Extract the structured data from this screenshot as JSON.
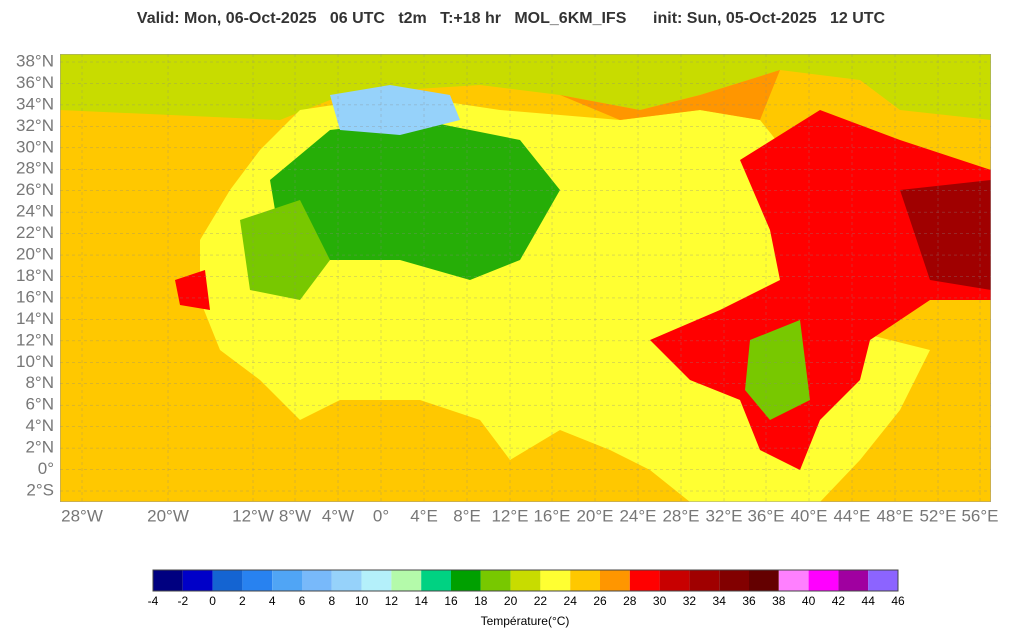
{
  "header": {
    "title": "Valid: Mon, 06-Oct-2025   06 UTC   t2m   T:+18 hr   MOL_6KM_IFS      init: Sun, 05-Oct-2025   12 UTC"
  },
  "map": {
    "lat_labels": [
      "38°N",
      "36°N",
      "34°N",
      "32°N",
      "30°N",
      "28°N",
      "26°N",
      "24°N",
      "22°N",
      "20°N",
      "18°N",
      "16°N",
      "14°N",
      "12°N",
      "10°N",
      "8°N",
      "6°N",
      "4°N",
      "2°N",
      "0°",
      "2°S"
    ],
    "lon_labels": [
      "28°W",
      "20°W",
      "12°W",
      "8°W",
      "4°W",
      "0°",
      "4°E",
      "8°E",
      "12°E",
      "16°E",
      "20°E",
      "24°E",
      "28°E",
      "32°E",
      "36°E",
      "40°E",
      "44°E",
      "48°E",
      "52°E",
      "56°E"
    ]
  },
  "colorbar": {
    "colors": [
      "#000080",
      "#0000c8",
      "#1464d2",
      "#2882f0",
      "#50a5f5",
      "#78b9fa",
      "#96d2fa",
      "#b4f0fa",
      "#b4faaa",
      "#00d282",
      "#00a000",
      "#78c800",
      "#c8dc00",
      "#ffff32",
      "#ffc800",
      "#ff9600",
      "#ff0000",
      "#c80000",
      "#a00000",
      "#820000",
      "#640000",
      "#ff80ff",
      "#ff00ff",
      "#a000a0",
      "#8c64ff"
    ],
    "ticks": [
      "-4",
      "-2",
      "0",
      "2",
      "4",
      "6",
      "8",
      "10",
      "12",
      "14",
      "16",
      "18",
      "20",
      "22",
      "24",
      "26",
      "28",
      "30",
      "32",
      "34",
      "36",
      "38",
      "40",
      "42",
      "44",
      "46"
    ],
    "label": "Température(°C)"
  }
}
